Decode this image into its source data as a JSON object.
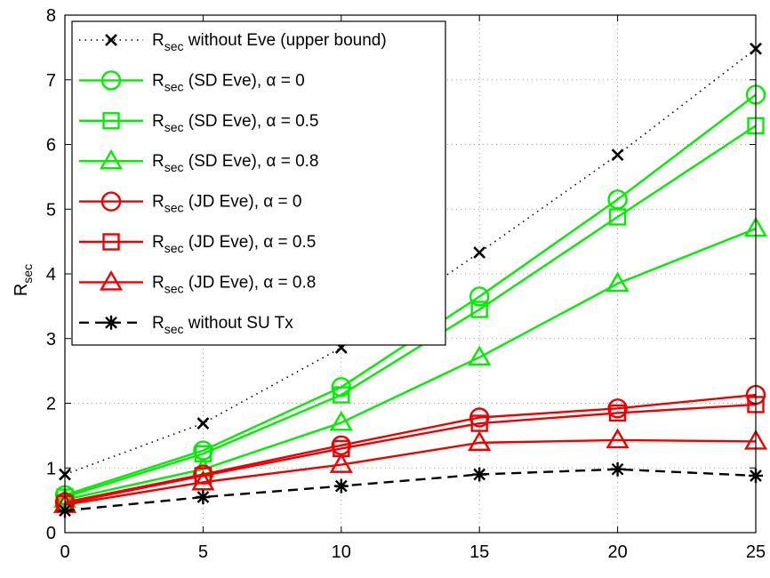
{
  "chart_data": {
    "type": "line",
    "title": "",
    "xlabel": "",
    "ylabel": "R_sec",
    "ylabel_main": "R",
    "ylabel_sub": "sec",
    "xlim": [
      0,
      25
    ],
    "ylim": [
      0,
      8
    ],
    "x_ticks": [
      0,
      5,
      10,
      15,
      20,
      25
    ],
    "y_ticks": [
      0,
      1,
      2,
      3,
      4,
      5,
      6,
      7,
      8
    ],
    "grid": true,
    "legend_position": "top-left",
    "x": [
      0,
      5,
      10,
      15,
      20,
      25
    ],
    "series": [
      {
        "name": "R_sec without Eve (upper bound)",
        "legend_pre": "R",
        "legend_sub": "sec",
        "legend_post": " without Eve (upper bound)",
        "color": "#000000",
        "dash": "dotted",
        "marker": "x",
        "values": [
          0.9,
          1.69,
          2.86,
          4.33,
          5.84,
          7.48
        ]
      },
      {
        "name": "R_sec (SD Eve), α = 0",
        "legend_pre": "R",
        "legend_sub": "sec",
        "legend_post": " (SD Eve), α = 0",
        "color": "#00ee00",
        "dash": "solid",
        "marker": "circle",
        "values": [
          0.58,
          1.27,
          2.25,
          3.65,
          5.15,
          6.77
        ]
      },
      {
        "name": "R_sec (SD Eve), α = 0.5",
        "legend_pre": "R",
        "legend_sub": "sec",
        "legend_post": " (SD Eve), α = 0.5",
        "color": "#00ee00",
        "dash": "solid",
        "marker": "square",
        "values": [
          0.55,
          1.22,
          2.13,
          3.45,
          4.88,
          6.29
        ]
      },
      {
        "name": "R_sec (SD Eve), α = 0.8",
        "legend_pre": "R",
        "legend_sub": "sec",
        "legend_post": " (SD Eve), α = 0.8",
        "color": "#00ee00",
        "dash": "solid",
        "marker": "triangle",
        "values": [
          0.51,
          0.98,
          1.7,
          2.71,
          3.85,
          4.7
        ]
      },
      {
        "name": "R_sec (JD Eve), α = 0",
        "legend_pre": "R",
        "legend_sub": "sec",
        "legend_post": " (JD Eve), α = 0",
        "color": "#ee0000",
        "dash": "solid",
        "marker": "circle",
        "values": [
          0.47,
          0.9,
          1.35,
          1.78,
          1.92,
          2.13
        ]
      },
      {
        "name": "R_sec (JD Eve), α = 0.5",
        "legend_pre": "R",
        "legend_sub": "sec",
        "legend_post": " (JD Eve), α = 0.5",
        "color": "#ee0000",
        "dash": "solid",
        "marker": "square",
        "values": [
          0.45,
          0.88,
          1.3,
          1.69,
          1.85,
          1.98
        ]
      },
      {
        "name": "R_sec (JD Eve), α = 0.8",
        "legend_pre": "R",
        "legend_sub": "sec",
        "legend_post": " (JD Eve), α = 0.8",
        "color": "#ee0000",
        "dash": "solid",
        "marker": "triangle",
        "values": [
          0.43,
          0.78,
          1.05,
          1.39,
          1.43,
          1.41
        ]
      },
      {
        "name": "R_sec without SU Tx",
        "legend_pre": "R",
        "legend_sub": "sec",
        "legend_post": " without SU Tx",
        "color": "#000000",
        "dash": "dashed",
        "marker": "asterisk",
        "values": [
          0.34,
          0.55,
          0.72,
          0.9,
          0.98,
          0.88
        ]
      }
    ]
  }
}
